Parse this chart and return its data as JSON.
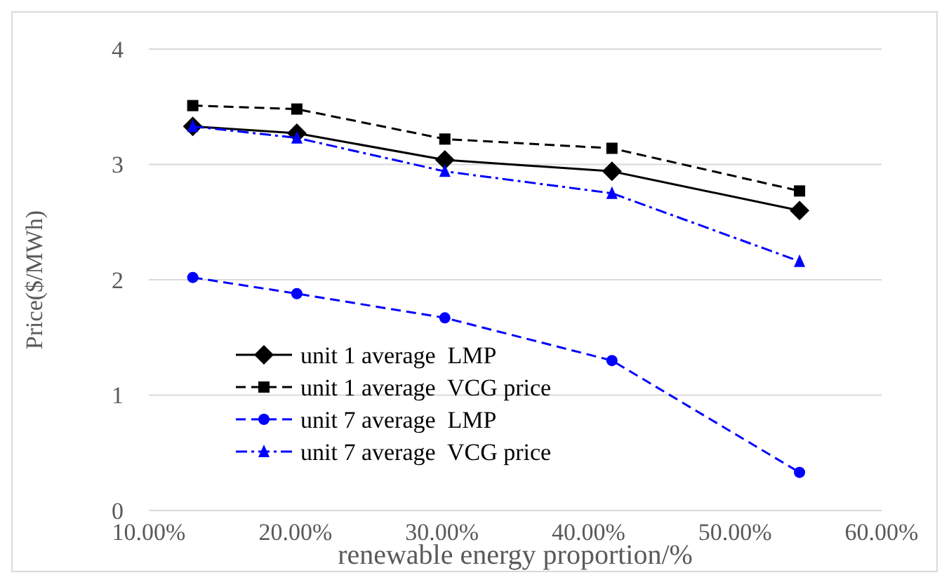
{
  "chart_data": {
    "type": "line",
    "xlabel": "renewable energy proportion/%",
    "ylabel": "Price($/MWh)",
    "xlim": [
      10,
      60
    ],
    "xticks": [
      {
        "value": 10,
        "label": "10.00%"
      },
      {
        "value": 20,
        "label": "20.00%"
      },
      {
        "value": 30,
        "label": "30.00%"
      },
      {
        "value": 40,
        "label": "40.00%"
      },
      {
        "value": 50,
        "label": "50.00%"
      },
      {
        "value": 60,
        "label": "60.00%"
      }
    ],
    "ylim": [
      0,
      4
    ],
    "yticks": [
      0,
      1,
      2,
      3,
      4
    ],
    "grid": "y",
    "legend": "bottom left",
    "x": [
      13,
      20.1,
      30.2,
      41.6,
      54.4
    ],
    "series": [
      {
        "name": "unit 1 average  LMP",
        "color": "#000000",
        "marker": "diamond",
        "line_style": "solid",
        "values": [
          3.33,
          3.27,
          3.04,
          2.94,
          2.6
        ]
      },
      {
        "name": "unit 1 average  VCG price",
        "color": "#000000",
        "marker": "square",
        "line_style": "dashed",
        "values": [
          3.51,
          3.48,
          3.22,
          3.14,
          2.77
        ]
      },
      {
        "name": "unit 7 average  LMP",
        "color": "#0000ff",
        "marker": "circle",
        "line_style": "dashed",
        "values": [
          2.02,
          1.88,
          1.67,
          1.3,
          0.33
        ]
      },
      {
        "name": "unit 7 average  VCG price",
        "color": "#0000ff",
        "marker": "triangle",
        "line_style": "dotted",
        "values": [
          3.33,
          3.23,
          2.94,
          2.75,
          2.16
        ]
      }
    ]
  }
}
